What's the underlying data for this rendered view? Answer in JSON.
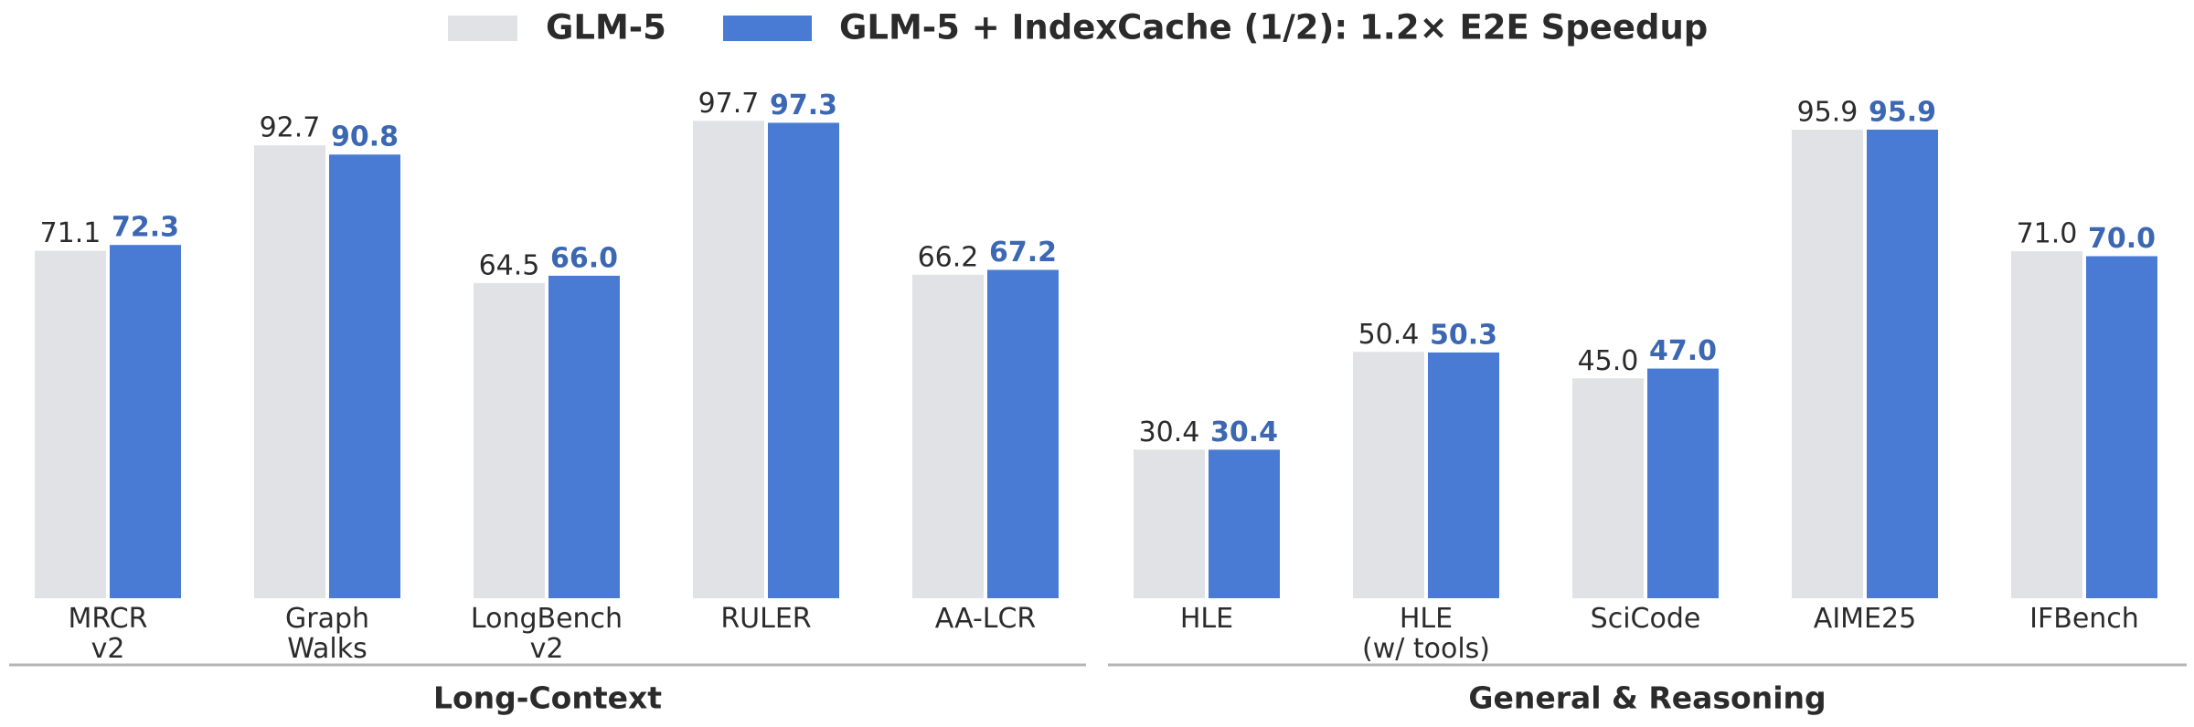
{
  "chart_data": {
    "type": "bar",
    "series": [
      {
        "name": "GLM-5",
        "color": "#e1e2e6",
        "values": [
          71.1,
          92.7,
          64.5,
          97.7,
          66.2,
          30.4,
          50.4,
          45.0,
          95.9,
          71.0
        ],
        "value_labels": [
          "71.1",
          "92.7",
          "64.5",
          "97.7",
          "66.2",
          "30.4",
          "50.4",
          "45.0",
          "95.9",
          "71.0"
        ]
      },
      {
        "name": "GLM-5 + IndexCache (1/2): 1.2× E2E Speedup",
        "color": "#4a7bd4",
        "values": [
          72.3,
          90.8,
          66.0,
          97.3,
          67.2,
          30.4,
          50.3,
          47.0,
          95.9,
          70.0
        ],
        "value_labels": [
          "72.3",
          "90.8",
          "66.0",
          "97.3",
          "67.2",
          "30.4",
          "50.3",
          "47.0",
          "95.9",
          "70.0"
        ]
      }
    ],
    "groups": [
      {
        "label": "Long-Context",
        "categories": [
          "MRCR\nv2",
          "Graph\nWalks",
          "LongBench\nv2",
          "RULER",
          "AA-LCR"
        ]
      },
      {
        "label": "General & Reasoning",
        "categories": [
          "HLE",
          "HLE\n(w/ tools)",
          "SciCode",
          "AIME25",
          "IFBench"
        ]
      }
    ]
  }
}
